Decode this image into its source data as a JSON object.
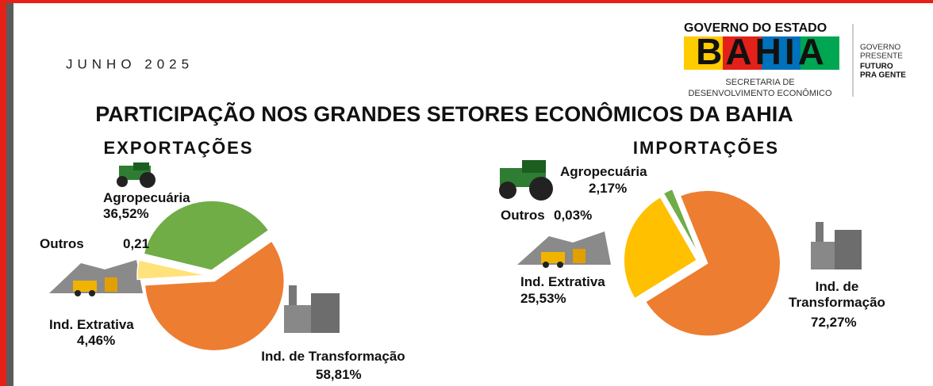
{
  "header": {
    "period": "JUNHO 2025",
    "title": "PARTICIPAÇÃO NOS GRANDES SETORES ECONÔMICOS DA BAHIA"
  },
  "logo": {
    "line1": "GOVERNO DO ESTADO",
    "name": "BAHIA",
    "secretariat1": "SECRETARIA DE",
    "secretariat2": "DESENVOLVIMENTO ECONÔMICO",
    "slogan1": "GOVERNO",
    "slogan2": "PRESENTE",
    "slogan3": "FUTURO",
    "slogan4": "PRA GENTE"
  },
  "chart_data": [
    {
      "type": "pie",
      "title": "EXPORTAÇÕES",
      "categories": [
        "Agropecuária",
        "Outros",
        "Ind. Extrativa",
        "Ind. de Transformação"
      ],
      "values": [
        36.52,
        0.21,
        4.46,
        58.81
      ],
      "value_labels": [
        "36,52%",
        "0,21",
        "4,46%",
        "58,81%"
      ],
      "colors": [
        "#70ad47",
        "#111111",
        "#ffe27a",
        "#ed7d31"
      ]
    },
    {
      "type": "pie",
      "title": "IMPORTAÇÕES",
      "categories": [
        "Agropecuária",
        "Outros",
        "Ind. Extrativa",
        "Ind. de Transformação"
      ],
      "values": [
        2.17,
        0.03,
        25.53,
        72.27
      ],
      "value_labels": [
        "2,17%",
        "0,03%",
        "25,53%",
        "72,27%"
      ],
      "colors": [
        "#70ad47",
        "#111111",
        "#ffc000",
        "#ed7d31"
      ]
    }
  ]
}
